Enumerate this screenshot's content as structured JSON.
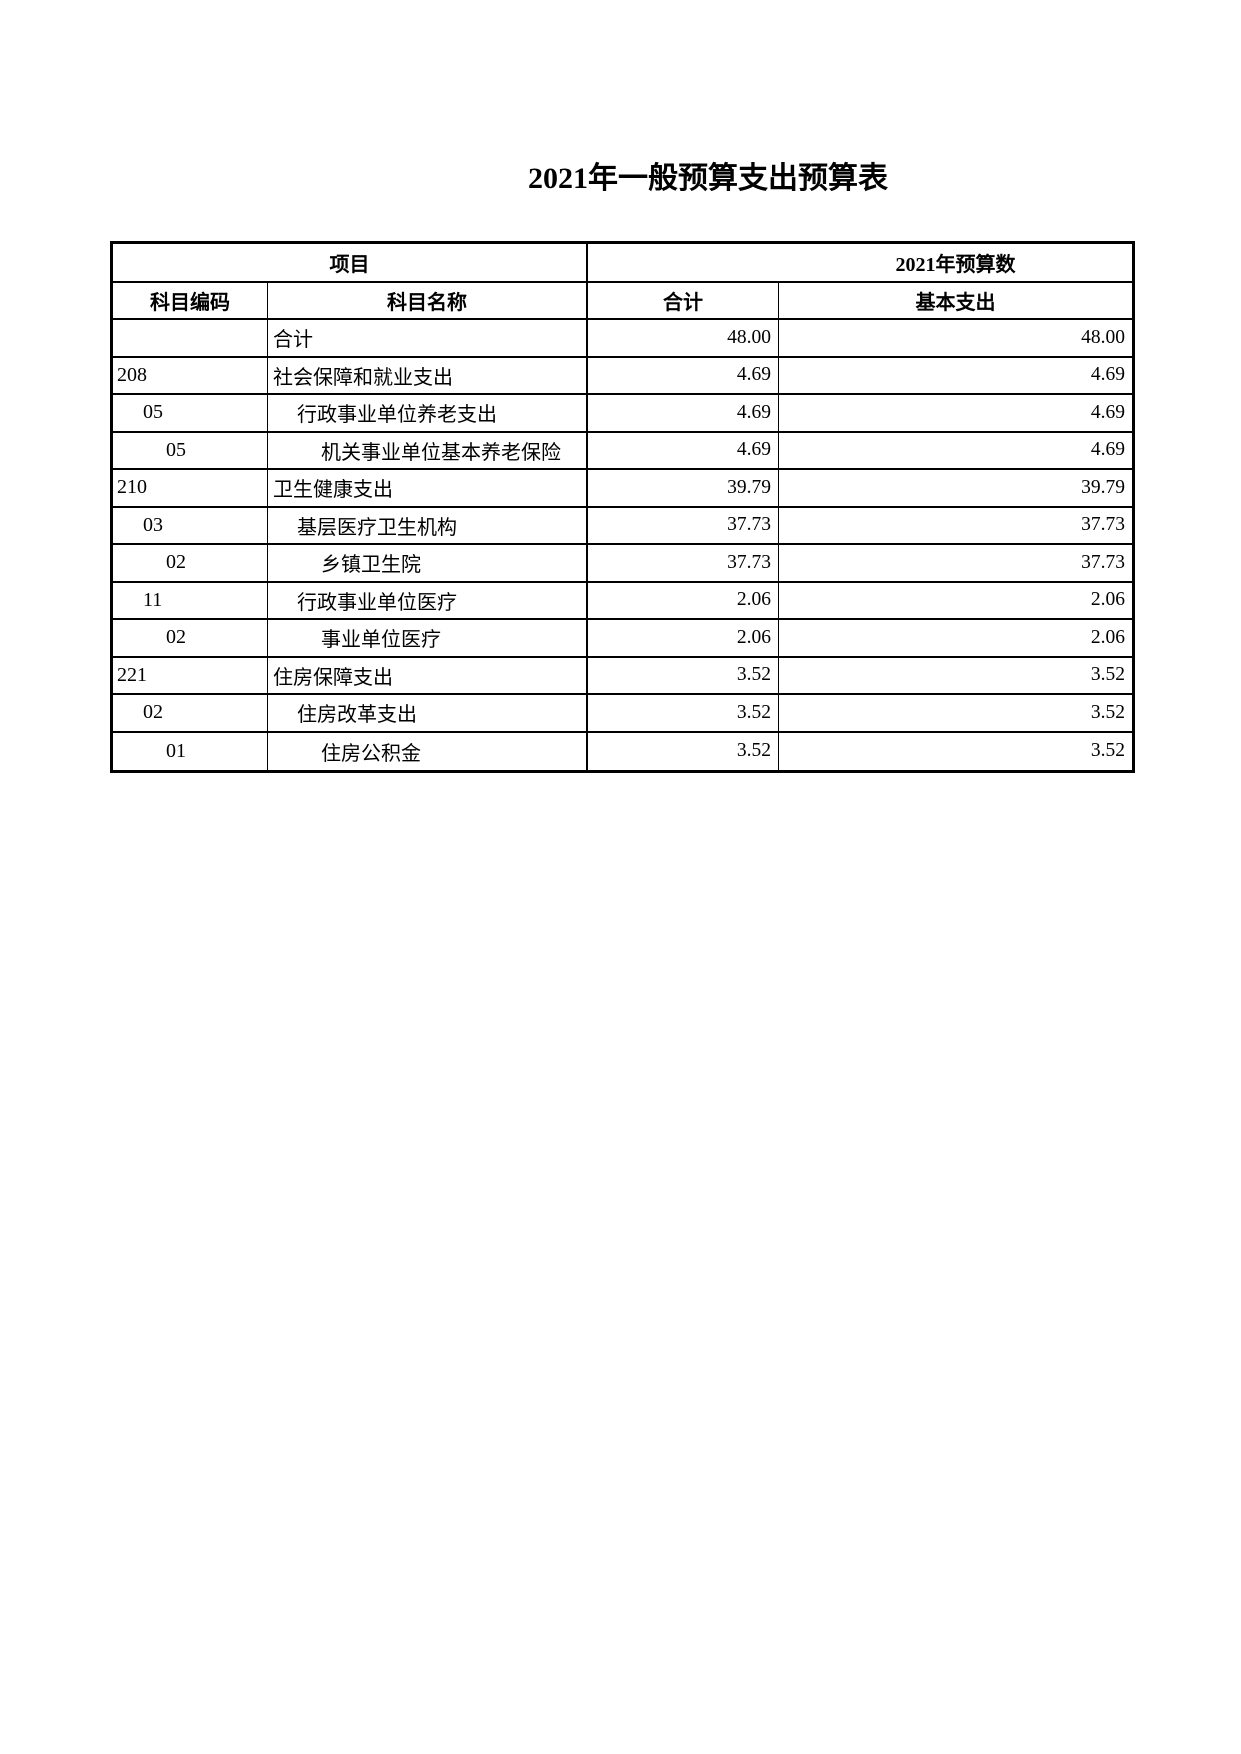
{
  "page": {
    "title": "2021年一般预算支出预算表"
  },
  "table": {
    "header_row1": {
      "project_label": "项目",
      "budget_label": "2021年预算数"
    },
    "header_row2": {
      "subject_code": "科目编码",
      "subject_name": "科目名称",
      "total": "合计",
      "basic_expense": "基本支出"
    },
    "rows": [
      {
        "code": "",
        "code_indent": 0,
        "name": "合计",
        "name_indent": 0,
        "total": "48.00",
        "basic": "48.00"
      },
      {
        "code": "208",
        "code_indent": 0,
        "name": "社会保障和就业支出",
        "name_indent": 0,
        "total": "4.69",
        "basic": "4.69"
      },
      {
        "code": "05",
        "code_indent": 1,
        "name": "行政事业单位养老支出",
        "name_indent": 1,
        "total": "4.69",
        "basic": "4.69"
      },
      {
        "code": "05",
        "code_indent": 2,
        "name": "机关事业单位基本养老保险",
        "name_indent": 2,
        "total": "4.69",
        "basic": "4.69"
      },
      {
        "code": "210",
        "code_indent": 0,
        "name": "卫生健康支出",
        "name_indent": 0,
        "total": "39.79",
        "basic": "39.79"
      },
      {
        "code": "03",
        "code_indent": 1,
        "name": "基层医疗卫生机构",
        "name_indent": 1,
        "total": "37.73",
        "basic": "37.73"
      },
      {
        "code": "02",
        "code_indent": 2,
        "name": "乡镇卫生院",
        "name_indent": 2,
        "total": "37.73",
        "basic": "37.73"
      },
      {
        "code": "11",
        "code_indent": 1,
        "name": "行政事业单位医疗",
        "name_indent": 1,
        "total": "2.06",
        "basic": "2.06"
      },
      {
        "code": "02",
        "code_indent": 2,
        "name": "事业单位医疗",
        "name_indent": 2,
        "total": "2.06",
        "basic": "2.06"
      },
      {
        "code": "221",
        "code_indent": 0,
        "name": "住房保障支出",
        "name_indent": 0,
        "total": "3.52",
        "basic": "3.52"
      },
      {
        "code": "02",
        "code_indent": 1,
        "name": "住房改革支出",
        "name_indent": 1,
        "total": "3.52",
        "basic": "3.52"
      },
      {
        "code": "01",
        "code_indent": 2,
        "name": "住房公积金",
        "name_indent": 2,
        "total": "3.52",
        "basic": "3.52"
      }
    ],
    "colors": {
      "border": "#000000",
      "text": "#000000",
      "background": "#ffffff"
    }
  }
}
